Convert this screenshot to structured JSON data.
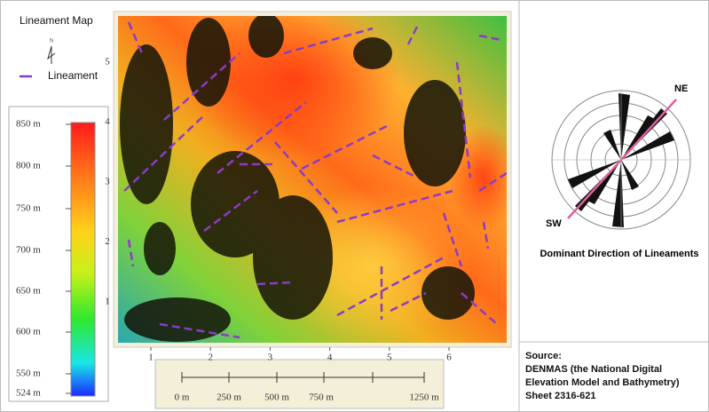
{
  "legend": {
    "title": "Lineament Map",
    "north": "N",
    "lineament": "Lineament"
  },
  "colorbar": {
    "labels": [
      "850 m",
      "800 m",
      "750 m",
      "700 m",
      "650 m",
      "600 m",
      "550 m",
      "524 m"
    ]
  },
  "map": {
    "x_ticks": [
      "1",
      "2",
      "3",
      "4",
      "5",
      "6"
    ],
    "y_ticks": [
      "1",
      "2",
      "3",
      "4",
      "5"
    ]
  },
  "scale_bar": {
    "labels": [
      "0 m",
      "250 m",
      "500 m",
      "750 m",
      "1250 m"
    ]
  },
  "rose": {
    "ne": "NE",
    "sw": "SW",
    "caption": "Dominant Direction of Lineaments"
  },
  "source": {
    "heading": "Source:",
    "text": "DENMAS (the National Digital Elevation Model and Bathymetry) Sheet 2316-621"
  }
}
